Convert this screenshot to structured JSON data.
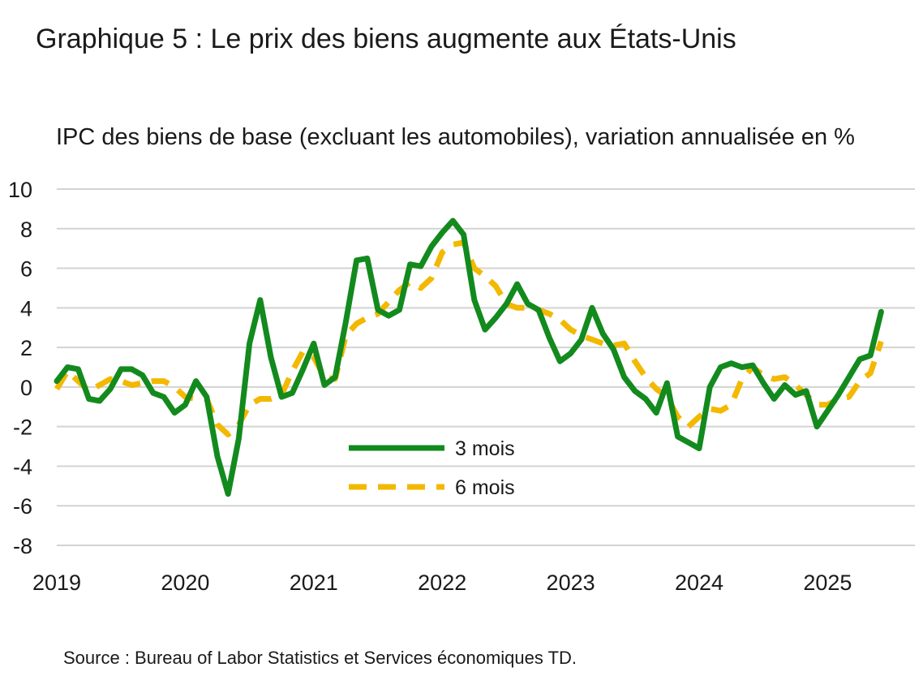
{
  "title": "Graphique 5 : Le prix des biens augmente aux États-Unis",
  "source": "Source : Bureau of Labor Statistics et Services économiques TD.",
  "chart_data": {
    "type": "line",
    "title": "Graphique 5 : Le prix des biens augmente aux États-Unis",
    "ylabel": "IPC des biens de base (excluant les automobiles), variation annualisée en %",
    "xlabel": "",
    "ylim": [
      -8,
      10
    ],
    "yticks": [
      10,
      8,
      6,
      4,
      2,
      0,
      -2,
      -4,
      -6,
      -8
    ],
    "xticks": [
      "2019",
      "2020",
      "2021",
      "2022",
      "2023",
      "2024",
      "2025"
    ],
    "xlim": [
      "2019-01",
      "2025-12"
    ],
    "grid": true,
    "legend_position": "center",
    "series": [
      {
        "name": "3 mois",
        "color": "#138a1e",
        "style": "solid",
        "points": [
          [
            "2019-01",
            0.3
          ],
          [
            "2019-02",
            1.0
          ],
          [
            "2019-03",
            0.9
          ],
          [
            "2019-04",
            -0.6
          ],
          [
            "2019-05",
            -0.7
          ],
          [
            "2019-06",
            -0.1
          ],
          [
            "2019-07",
            0.9
          ],
          [
            "2019-08",
            0.9
          ],
          [
            "2019-09",
            0.6
          ],
          [
            "2019-10",
            -0.3
          ],
          [
            "2019-11",
            -0.5
          ],
          [
            "2019-12",
            -1.3
          ],
          [
            "2020-01",
            -0.9
          ],
          [
            "2020-02",
            0.3
          ],
          [
            "2020-03",
            -0.5
          ],
          [
            "2020-04",
            -3.5
          ],
          [
            "2020-05",
            -5.4
          ],
          [
            "2020-06",
            -2.6
          ],
          [
            "2020-07",
            2.2
          ],
          [
            "2020-08",
            4.4
          ],
          [
            "2020-09",
            1.5
          ],
          [
            "2020-10",
            -0.5
          ],
          [
            "2020-11",
            -0.3
          ],
          [
            "2020-12",
            0.9
          ],
          [
            "2021-01",
            2.2
          ],
          [
            "2021-02",
            0.1
          ],
          [
            "2021-03",
            0.5
          ],
          [
            "2021-04",
            3.3
          ],
          [
            "2021-05",
            6.4
          ],
          [
            "2021-06",
            6.5
          ],
          [
            "2021-07",
            3.9
          ],
          [
            "2021-08",
            3.6
          ],
          [
            "2021-09",
            3.9
          ],
          [
            "2021-10",
            6.2
          ],
          [
            "2021-11",
            6.1
          ],
          [
            "2021-12",
            7.1
          ],
          [
            "2022-01",
            7.8
          ],
          [
            "2022-02",
            8.4
          ],
          [
            "2022-03",
            7.7
          ],
          [
            "2022-04",
            4.4
          ],
          [
            "2022-05",
            2.9
          ],
          [
            "2022-06",
            3.5
          ],
          [
            "2022-07",
            4.2
          ],
          [
            "2022-08",
            5.2
          ],
          [
            "2022-09",
            4.2
          ],
          [
            "2022-10",
            3.9
          ],
          [
            "2022-11",
            2.5
          ],
          [
            "2022-12",
            1.3
          ],
          [
            "2023-01",
            1.7
          ],
          [
            "2023-02",
            2.4
          ],
          [
            "2023-03",
            4.0
          ],
          [
            "2023-04",
            2.7
          ],
          [
            "2023-05",
            1.9
          ],
          [
            "2023-06",
            0.5
          ],
          [
            "2023-07",
            -0.2
          ],
          [
            "2023-08",
            -0.6
          ],
          [
            "2023-09",
            -1.3
          ],
          [
            "2023-10",
            0.2
          ],
          [
            "2023-11",
            -2.5
          ],
          [
            "2023-12",
            -2.8
          ],
          [
            "2024-01",
            -3.1
          ],
          [
            "2024-02",
            0.0
          ],
          [
            "2024-03",
            1.0
          ],
          [
            "2024-04",
            1.2
          ],
          [
            "2024-05",
            1.0
          ],
          [
            "2024-06",
            1.1
          ],
          [
            "2024-07",
            0.2
          ],
          [
            "2024-08",
            -0.6
          ],
          [
            "2024-09",
            0.1
          ],
          [
            "2024-10",
            -0.4
          ],
          [
            "2024-11",
            -0.2
          ],
          [
            "2024-12",
            -2.0
          ],
          [
            "2025-01",
            -1.2
          ],
          [
            "2025-02",
            -0.4
          ],
          [
            "2025-03",
            0.5
          ],
          [
            "2025-04",
            1.4
          ],
          [
            "2025-05",
            1.6
          ],
          [
            "2025-06",
            3.8
          ]
        ]
      },
      {
        "name": "6 mois",
        "color": "#f3b800",
        "style": "dashed",
        "points": [
          [
            "2019-01",
            -0.1
          ],
          [
            "2019-02",
            0.8
          ],
          [
            "2019-03",
            0.3
          ],
          [
            "2019-04",
            -0.2
          ],
          [
            "2019-05",
            0.1
          ],
          [
            "2019-06",
            0.4
          ],
          [
            "2019-07",
            0.3
          ],
          [
            "2019-08",
            0.1
          ],
          [
            "2019-09",
            0.2
          ],
          [
            "2019-10",
            0.3
          ],
          [
            "2019-11",
            0.3
          ],
          [
            "2019-12",
            0.0
          ],
          [
            "2020-01",
            -0.5
          ],
          [
            "2020-02",
            -0.6
          ],
          [
            "2020-03",
            -0.6
          ],
          [
            "2020-04",
            -1.9
          ],
          [
            "2020-05",
            -2.4
          ],
          [
            "2020-06",
            -1.9
          ],
          [
            "2020-07",
            -0.9
          ],
          [
            "2020-08",
            -0.6
          ],
          [
            "2020-09",
            -0.6
          ],
          [
            "2020-10",
            -0.4
          ],
          [
            "2020-11",
            0.8
          ],
          [
            "2020-12",
            1.8
          ],
          [
            "2021-01",
            1.5
          ],
          [
            "2021-02",
            0.5
          ],
          [
            "2021-03",
            0.4
          ],
          [
            "2021-04",
            2.6
          ],
          [
            "2021-05",
            3.2
          ],
          [
            "2021-06",
            3.5
          ],
          [
            "2021-07",
            3.7
          ],
          [
            "2021-08",
            4.3
          ],
          [
            "2021-09",
            4.9
          ],
          [
            "2021-10",
            5.3
          ],
          [
            "2021-11",
            5.0
          ],
          [
            "2021-12",
            5.5
          ],
          [
            "2022-01",
            6.8
          ],
          [
            "2022-02",
            7.2
          ],
          [
            "2022-03",
            7.3
          ],
          [
            "2022-04",
            6.0
          ],
          [
            "2022-05",
            5.6
          ],
          [
            "2022-06",
            5.1
          ],
          [
            "2022-07",
            4.2
          ],
          [
            "2022-08",
            4.0
          ],
          [
            "2022-09",
            4.0
          ],
          [
            "2022-10",
            3.9
          ],
          [
            "2022-11",
            3.7
          ],
          [
            "2022-12",
            3.4
          ],
          [
            "2023-01",
            2.9
          ],
          [
            "2023-02",
            2.6
          ],
          [
            "2023-03",
            2.4
          ],
          [
            "2023-04",
            2.2
          ],
          [
            "2023-05",
            2.1
          ],
          [
            "2023-06",
            2.2
          ],
          [
            "2023-07",
            1.3
          ],
          [
            "2023-08",
            0.5
          ],
          [
            "2023-09",
            -0.1
          ],
          [
            "2023-10",
            -0.5
          ],
          [
            "2023-11",
            -1.5
          ],
          [
            "2023-12",
            -2.0
          ],
          [
            "2024-01",
            -1.5
          ],
          [
            "2024-02",
            -1.1
          ],
          [
            "2024-03",
            -1.2
          ],
          [
            "2024-04",
            -0.9
          ],
          [
            "2024-05",
            0.4
          ],
          [
            "2024-06",
            1.0
          ],
          [
            "2024-07",
            0.6
          ],
          [
            "2024-08",
            0.4
          ],
          [
            "2024-09",
            0.5
          ],
          [
            "2024-10",
            0.1
          ],
          [
            "2024-11",
            -0.4
          ],
          [
            "2024-12",
            -0.9
          ],
          [
            "2025-01",
            -0.9
          ],
          [
            "2025-02",
            -0.6
          ],
          [
            "2025-03",
            -0.5
          ],
          [
            "2025-04",
            0.3
          ],
          [
            "2025-05",
            0.7
          ],
          [
            "2025-06",
            2.3
          ]
        ]
      }
    ]
  }
}
